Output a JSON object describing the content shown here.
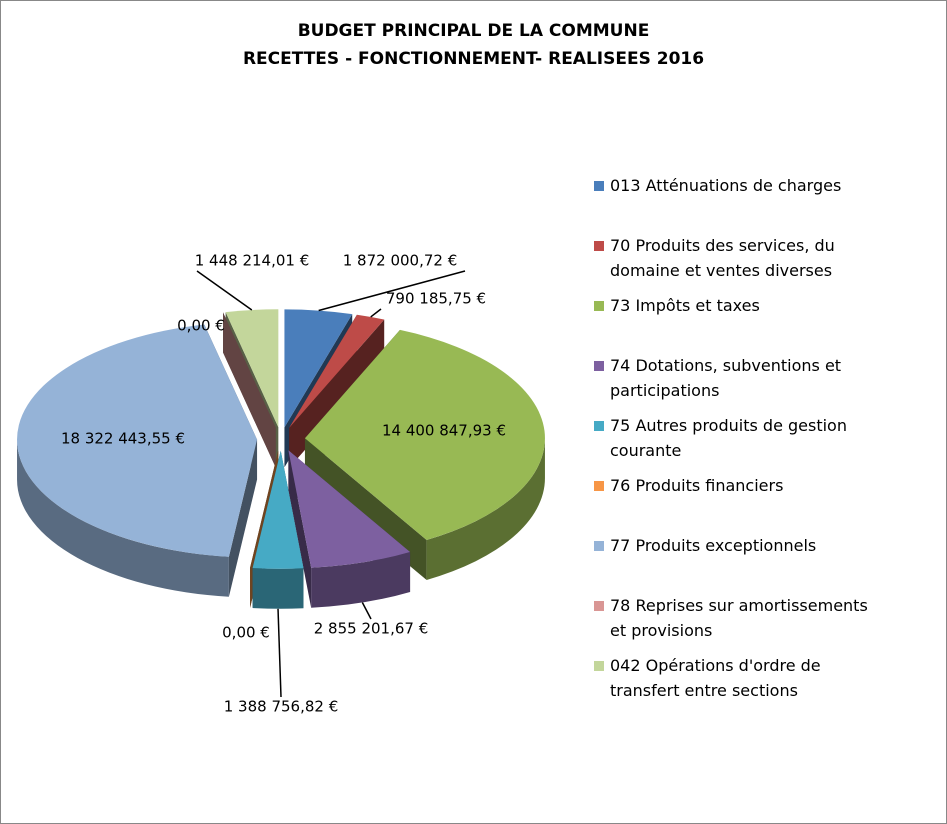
{
  "chart_data": {
    "type": "pie",
    "title": "BUDGET PRINCIPAL DE LA COMMUNE",
    "subtitle": "RECETTES - FONCTIONNEMENT- REALISEES  2016",
    "categories": [
      "013 Atténuations de charges",
      "70 Produits des services, du domaine et ventes diverses",
      "73 Impôts et taxes",
      "74 Dotations, subventions et participations",
      "75 Autres produits de gestion courante",
      "76 Produits financiers",
      "77 Produits exceptionnels",
      "78 Reprises sur amortissements et provisions",
      "042 Opérations d'ordre de transfert entre sections"
    ],
    "values": [
      1872000.72,
      790185.75,
      14400847.93,
      2855201.67,
      1388756.82,
      0,
      18322443.55,
      0,
      1448214.01
    ],
    "value_labels": [
      "1 872 000,72 €",
      "790 185,75 €",
      "14 400 847,93 €",
      "2 855 201,67 €",
      "1 388 756,82 €",
      "0,00 €",
      "18 322 443,55 €",
      "0,00 €",
      "1 448 214,01 €"
    ],
    "colors": [
      "#4a7ebb",
      "#be4b48",
      "#98b954",
      "#7d60a0",
      "#46aac5",
      "#f79646",
      "#95b3d7",
      "#d99694",
      "#c3d69b"
    ],
    "legend": "right"
  }
}
